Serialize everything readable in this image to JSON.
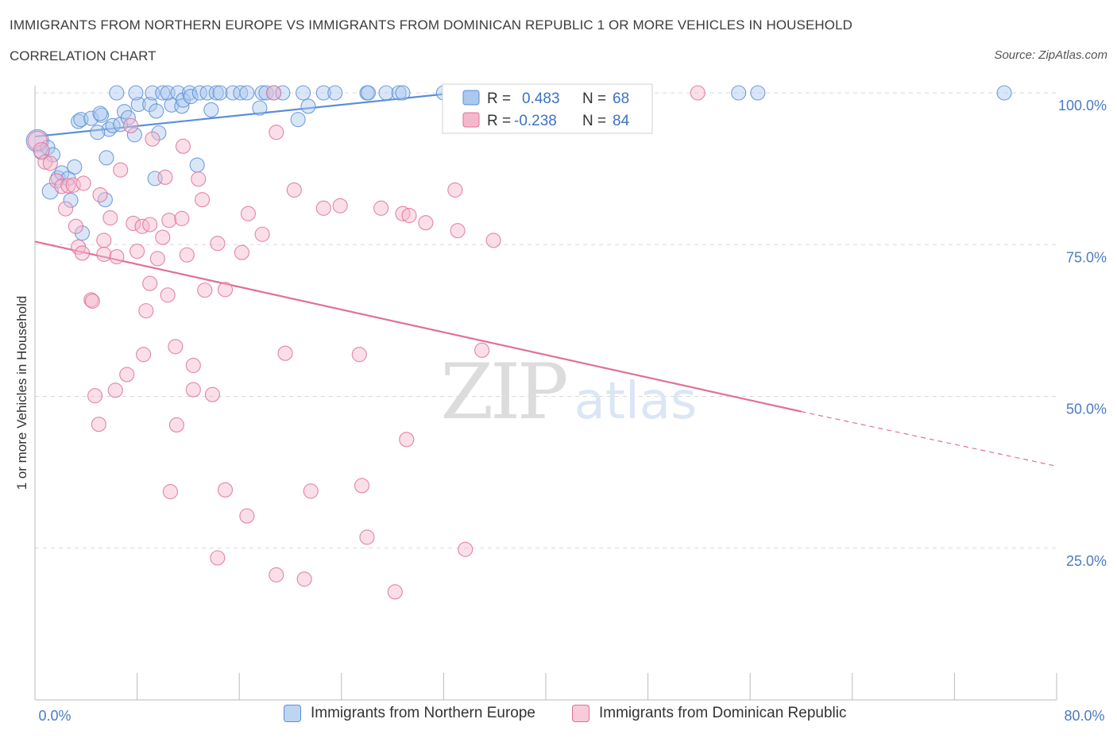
{
  "title": "IMMIGRANTS FROM NORTHERN EUROPE VS IMMIGRANTS FROM DOMINICAN REPUBLIC 1 OR MORE VEHICLES IN HOUSEHOLD",
  "subtitle": "CORRELATION CHART",
  "source": "Source: ZipAtlas.com",
  "watermark": {
    "zip": "ZIP",
    "atlas": "atlas"
  },
  "colors": {
    "blue": "#5b8fd6",
    "blue_fill": "#aac8f0",
    "pink": "#e0709a",
    "pink_fill": "#f4b8cc",
    "grid": "#d8d8d8",
    "tick_label": "#4a7cc4"
  },
  "chart_data": {
    "type": "scatter",
    "xlabel": "",
    "ylabel": "1 or more Vehicles in Household",
    "xlim": [
      0,
      80
    ],
    "ylim": [
      0,
      100
    ],
    "x_tick_labels": {
      "min": "0.0%",
      "max": "80.0%"
    },
    "y_ticks": [
      {
        "value": 100,
        "label": "100.0%"
      },
      {
        "value": 75,
        "label": "75.0%"
      },
      {
        "value": 50,
        "label": "50.0%"
      },
      {
        "value": 25,
        "label": "25.0%"
      }
    ],
    "legend": [
      {
        "r_label": "R =",
        "r_value": "0.483",
        "n_label": "N =",
        "n_value": "68"
      },
      {
        "r_label": "R =",
        "r_value": "-0.238",
        "n_label": "N =",
        "n_value": "84"
      }
    ],
    "series": [
      {
        "name": "Immigrants from Northern Europe",
        "color": "#5b8fd6",
        "trend": {
          "x0": 0,
          "y0": 92.8,
          "x1": 33.0,
          "y1": 100.0,
          "dashed_to": null
        },
        "points": [
          [
            0.2,
            92.1,
            14
          ],
          [
            0.5,
            90.2,
            9
          ],
          [
            1.0,
            91.0,
            9
          ],
          [
            1.4,
            89.8,
            9
          ],
          [
            1.2,
            83.8,
            10
          ],
          [
            1.8,
            86.0,
            9
          ],
          [
            2.1,
            86.8,
            9
          ],
          [
            2.6,
            85.9,
            9
          ],
          [
            3.1,
            87.8,
            9
          ],
          [
            2.8,
            82.3,
            9
          ],
          [
            3.7,
            76.9,
            9
          ],
          [
            3.4,
            95.3,
            9
          ],
          [
            3.6,
            95.6,
            9
          ],
          [
            4.4,
            95.8,
            9
          ],
          [
            5.2,
            96.3,
            9
          ],
          [
            5.1,
            96.6,
            9
          ],
          [
            5.8,
            94.0,
            9
          ],
          [
            4.9,
            93.5,
            9
          ],
          [
            6.1,
            94.6,
            9
          ],
          [
            6.7,
            94.8,
            9
          ],
          [
            5.6,
            89.3,
            9
          ],
          [
            5.5,
            82.4,
            9
          ],
          [
            7.0,
            96.9,
            9
          ],
          [
            7.3,
            95.9,
            9
          ],
          [
            7.8,
            93.1,
            9
          ],
          [
            8.1,
            98.1,
            9
          ],
          [
            9.0,
            98.1,
            9
          ],
          [
            9.5,
            97.0,
            9
          ],
          [
            9.7,
            93.4,
            9
          ],
          [
            10.7,
            98.0,
            9
          ],
          [
            11.5,
            97.8,
            9
          ],
          [
            9.4,
            85.9,
            9
          ],
          [
            12.7,
            88.1,
            9
          ],
          [
            6.4,
            100,
            9
          ],
          [
            7.9,
            100,
            9
          ],
          [
            9.2,
            100,
            9
          ],
          [
            10.0,
            100,
            9
          ],
          [
            10.4,
            100,
            9
          ],
          [
            11.2,
            100,
            9
          ],
          [
            11.6,
            98.8,
            9
          ],
          [
            12.1,
            100,
            9
          ],
          [
            12.2,
            99.4,
            9
          ],
          [
            12.9,
            100,
            9
          ],
          [
            13.5,
            100,
            9
          ],
          [
            14.2,
            100,
            9
          ],
          [
            14.5,
            100,
            9
          ],
          [
            15.5,
            100,
            9
          ],
          [
            16.1,
            100,
            9
          ],
          [
            16.6,
            100,
            9
          ],
          [
            17.8,
            100,
            9
          ],
          [
            18.1,
            100,
            9
          ],
          [
            18.7,
            100,
            9
          ],
          [
            19.4,
            100,
            9
          ],
          [
            21.0,
            100,
            9
          ],
          [
            22.6,
            100,
            9
          ],
          [
            23.5,
            100,
            9
          ],
          [
            26.0,
            100,
            9
          ],
          [
            26.1,
            100,
            9
          ],
          [
            27.5,
            100,
            9
          ],
          [
            28.5,
            100,
            9
          ],
          [
            28.8,
            100,
            9
          ],
          [
            32.0,
            100,
            9
          ],
          [
            55.1,
            100,
            9
          ],
          [
            56.6,
            100,
            9
          ],
          [
            75.9,
            100,
            9
          ],
          [
            13.8,
            97.2,
            9
          ],
          [
            17.6,
            97.5,
            9
          ],
          [
            20.6,
            95.6,
            9
          ],
          [
            21.4,
            97.8,
            9
          ]
        ]
      },
      {
        "name": "Immigrants from Dominican Republic",
        "color": "#e0709a",
        "trend": {
          "x0": 0,
          "y0": 75.5,
          "x1": 60.0,
          "y1": 47.5,
          "dashed_to": [
            80,
            38.5
          ]
        },
        "points": [
          [
            0.2,
            92.1,
            12
          ],
          [
            0.5,
            90.5,
            10
          ],
          [
            0.8,
            88.6,
            9
          ],
          [
            1.2,
            88.4,
            9
          ],
          [
            1.7,
            85.5,
            9
          ],
          [
            2.1,
            84.6,
            9
          ],
          [
            2.6,
            84.7,
            9
          ],
          [
            3.0,
            84.8,
            9
          ],
          [
            3.8,
            85.1,
            9
          ],
          [
            2.4,
            80.9,
            9
          ],
          [
            3.2,
            78.0,
            9
          ],
          [
            3.4,
            74.6,
            9
          ],
          [
            3.7,
            73.6,
            9
          ],
          [
            4.4,
            65.9,
            9
          ],
          [
            4.5,
            65.7,
            9
          ],
          [
            5.1,
            83.2,
            9
          ],
          [
            5.4,
            75.7,
            9
          ],
          [
            5.4,
            73.4,
            9
          ],
          [
            5.9,
            79.4,
            9
          ],
          [
            6.4,
            73.0,
            9
          ],
          [
            6.7,
            87.3,
            9
          ],
          [
            7.5,
            94.6,
            9
          ],
          [
            7.2,
            53.6,
            9
          ],
          [
            7.7,
            78.5,
            9
          ],
          [
            8.0,
            73.9,
            9
          ],
          [
            8.4,
            78.0,
            9
          ],
          [
            8.7,
            64.1,
            9
          ],
          [
            9.0,
            78.3,
            9
          ],
          [
            9.0,
            68.6,
            9
          ],
          [
            9.2,
            92.4,
            9
          ],
          [
            9.6,
            72.7,
            9
          ],
          [
            10.0,
            76.2,
            9
          ],
          [
            10.2,
            86.1,
            9
          ],
          [
            10.4,
            66.7,
            9
          ],
          [
            10.5,
            79.0,
            9
          ],
          [
            11.5,
            79.3,
            9
          ],
          [
            11.9,
            73.3,
            9
          ],
          [
            11.6,
            91.2,
            9
          ],
          [
            12.8,
            85.8,
            9
          ],
          [
            13.1,
            82.4,
            9
          ],
          [
            13.3,
            67.5,
            9
          ],
          [
            14.3,
            75.2,
            9
          ],
          [
            14.9,
            67.6,
            9
          ],
          [
            16.2,
            73.7,
            9
          ],
          [
            16.7,
            80.1,
            9
          ],
          [
            17.8,
            76.7,
            9
          ],
          [
            18.7,
            100,
            9
          ],
          [
            18.9,
            93.5,
            9
          ],
          [
            20.3,
            84.0,
            9
          ],
          [
            22.6,
            81.0,
            9
          ],
          [
            23.9,
            81.4,
            9
          ],
          [
            27.1,
            81.0,
            9
          ],
          [
            28.8,
            80.1,
            9
          ],
          [
            29.3,
            79.8,
            9
          ],
          [
            30.6,
            78.6,
            9
          ],
          [
            32.9,
            84.0,
            9
          ],
          [
            33.1,
            77.3,
            9
          ],
          [
            35.9,
            75.7,
            9
          ],
          [
            51.9,
            100,
            9
          ],
          [
            4.7,
            50.1,
            9
          ],
          [
            5.0,
            45.4,
            9
          ],
          [
            6.3,
            51.0,
            9
          ],
          [
            8.5,
            56.9,
            9
          ],
          [
            10.6,
            34.3,
            9
          ],
          [
            11.0,
            58.2,
            9
          ],
          [
            11.1,
            45.3,
            9
          ],
          [
            12.4,
            55.1,
            9
          ],
          [
            12.4,
            51.1,
            9
          ],
          [
            13.9,
            50.3,
            9
          ],
          [
            14.3,
            23.4,
            9
          ],
          [
            14.9,
            34.6,
            9
          ],
          [
            16.6,
            30.3,
            9
          ],
          [
            18.9,
            20.6,
            9
          ],
          [
            19.6,
            57.1,
            9
          ],
          [
            21.1,
            19.9,
            9
          ],
          [
            21.6,
            34.4,
            9
          ],
          [
            25.4,
            56.9,
            9
          ],
          [
            25.6,
            35.3,
            9
          ],
          [
            26.0,
            26.8,
            9
          ],
          [
            28.2,
            17.8,
            9
          ],
          [
            29.1,
            42.9,
            9
          ],
          [
            33.7,
            24.8,
            9
          ],
          [
            35.0,
            57.6,
            9
          ]
        ]
      }
    ]
  }
}
